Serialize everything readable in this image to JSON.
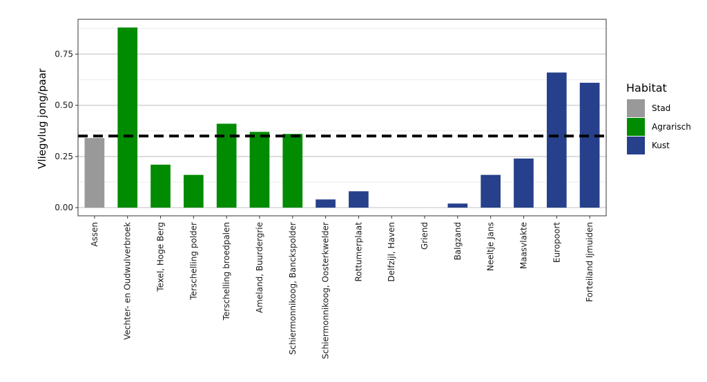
{
  "chart_data": {
    "type": "bar",
    "title": "",
    "xlabel": "",
    "ylabel": "Vliegvlug jong/paar",
    "ylim": [
      -0.04,
      0.92
    ],
    "yticks": [
      "0.00",
      "0.25",
      "0.50",
      "0.75"
    ],
    "ytick_values": [
      0,
      0.25,
      0.5,
      0.75
    ],
    "grid": true,
    "categories": [
      "Assen",
      "Vechter- en Oudwulverbroek",
      "Texel, Hoge Berg",
      "Terschelling polder",
      "Terschelling broedpalen",
      "Ameland, Buurdergrie",
      "Schiermonnikoog, Banckspolder",
      "Schiermonnikoog, Oosterkwelder",
      "Rottumerplaat",
      "Delfzijl, Haven",
      "Griend",
      "Balgzand",
      "Neeltje Jans",
      "Maasvlakte",
      "Europoort",
      "Forteiland Ijmuiden"
    ],
    "values": [
      0.34,
      0.88,
      0.21,
      0.16,
      0.41,
      0.37,
      0.36,
      0.04,
      0.08,
      0.0,
      0.0,
      0.02,
      0.16,
      0.24,
      0.66,
      0.61
    ],
    "habitat": [
      "Stad",
      "Agrarisch",
      "Agrarisch",
      "Agrarisch",
      "Agrarisch",
      "Agrarisch",
      "Agrarisch",
      "Kust",
      "Kust",
      "Kust",
      "Kust",
      "Kust",
      "Kust",
      "Kust",
      "Kust",
      "Kust"
    ],
    "reference_line": {
      "y": 0.35,
      "style": "dashed",
      "color": "#000000"
    },
    "legend": {
      "title": "Habitat",
      "placement": "right",
      "items": [
        {
          "label": "Stad",
          "color": "#999999"
        },
        {
          "label": "Agrarisch",
          "color": "#008B00"
        },
        {
          "label": "Kust",
          "color": "#27408B"
        }
      ]
    }
  }
}
